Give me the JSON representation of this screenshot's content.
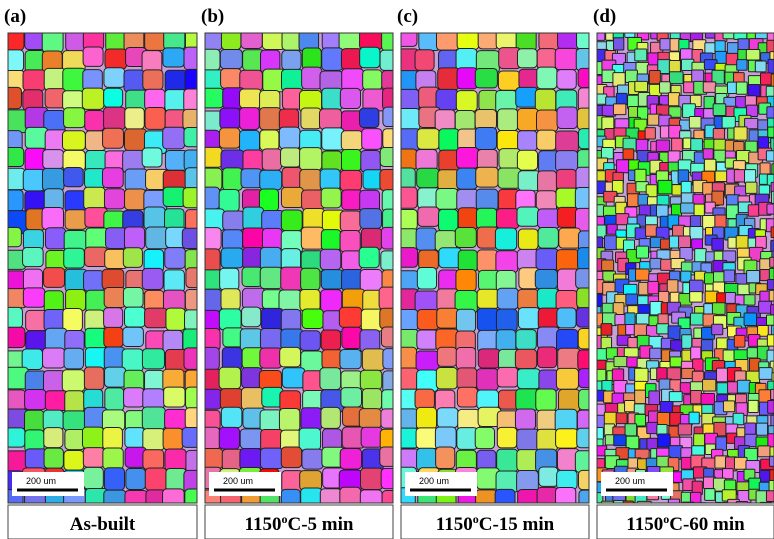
{
  "panels": [
    {
      "label": "(a)",
      "scale_bar": "200 um",
      "caption": {
        "pre": "As-built"
      }
    },
    {
      "label": "(b)",
      "scale_bar": "200 um",
      "caption": {
        "pre": "1150",
        "sup": "o",
        "post": "C-5 min"
      }
    },
    {
      "label": "(c)",
      "scale_bar": "200 um",
      "caption": {
        "pre": "1150",
        "sup": "o",
        "post": "C-15 min"
      }
    },
    {
      "label": "(d)",
      "scale_bar": "200 um",
      "caption": {
        "pre": "1150",
        "sup": "o",
        "post": "C-60 min"
      }
    }
  ]
}
